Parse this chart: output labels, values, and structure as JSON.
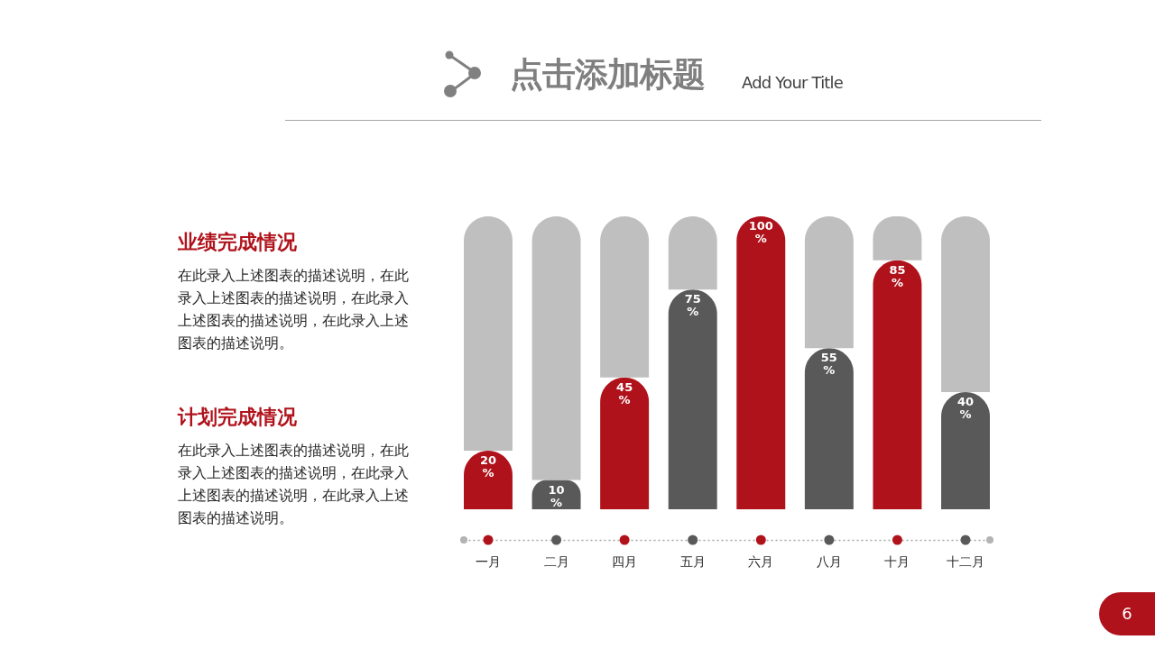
{
  "chart_data": {
    "type": "bar",
    "title": "点击添加标题",
    "subtitle": "Add Your Title",
    "categories": [
      "一月",
      "二月",
      "四月",
      "五月",
      "六月",
      "八月",
      "十月",
      "十二月"
    ],
    "stacked": true,
    "series": [
      {
        "colors": [
          "#b0121b",
          "#595959",
          "#b0121b",
          "#595959",
          "#b0121b",
          "#595959",
          "#b0121b",
          "#595959"
        ],
        "values": [
          20,
          10,
          45,
          75,
          100,
          55,
          85,
          40
        ],
        "value_labels": [
          "20\n%",
          "10\n%",
          "45\n%",
          "75\n%",
          "100\n%",
          "55\n%",
          "85\n%",
          "40\n%"
        ]
      },
      {
        "color": "#bfbfbf",
        "values": [
          80,
          90,
          55,
          25,
          null,
          45,
          15,
          60
        ]
      }
    ],
    "ylim": [
      0,
      100
    ],
    "tick_labels": "x",
    "annotations": [
      "业绩完成情况",
      "在此录入上述图表的描述说明，在此录入上述图表的描述说明，在此录入上述图表的描述说明，在此录入上述图表的描述说明。",
      "计划完成情况",
      "在此录入上述图表的描述说明，在此录入上述图表的描述说明，在此录入上述图表的描述说明，在此录入上述图表的描述说明。",
      "6"
    ]
  }
}
